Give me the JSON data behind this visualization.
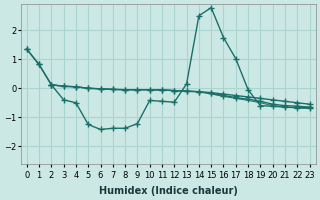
{
  "xlabel": "Humidex (Indice chaleur)",
  "bg_color": "#cce8e4",
  "grid_color": "#aad4ce",
  "line_color": "#1a7068",
  "xlim": [
    -0.5,
    23.5
  ],
  "ylim": [
    -2.6,
    2.9
  ],
  "yticks": [
    -2,
    -1,
    0,
    1,
    2
  ],
  "xtick_labels": [
    "0",
    "1",
    "2",
    "3",
    "4",
    "5",
    "6",
    "7",
    "8",
    "9",
    "10",
    "11",
    "12",
    "13",
    "14",
    "15",
    "16",
    "17",
    "18",
    "19",
    "20",
    "21",
    "22",
    "23"
  ],
  "line1_x": [
    0,
    1,
    2,
    3,
    4,
    5,
    6,
    7,
    8,
    9,
    10,
    11,
    12,
    13,
    14,
    15,
    16,
    17,
    18,
    19,
    20,
    21,
    22,
    23
  ],
  "line1_y": [
    1.35,
    0.82,
    0.12,
    0.07,
    0.05,
    0.0,
    -0.02,
    -0.04,
    -0.05,
    -0.05,
    -0.05,
    -0.06,
    -0.08,
    -0.1,
    -0.12,
    -0.15,
    -0.2,
    -0.25,
    -0.3,
    -0.35,
    -0.4,
    -0.45,
    -0.5,
    -0.55
  ],
  "line2_x": [
    0,
    1,
    2,
    3,
    4,
    5,
    6,
    7,
    8,
    9,
    10,
    11,
    12,
    13,
    14,
    15,
    16,
    17,
    18,
    19,
    20,
    21,
    22,
    23
  ],
  "line2_y": [
    1.35,
    0.82,
    0.12,
    -0.4,
    -0.5,
    -1.25,
    -1.42,
    -1.38,
    -1.38,
    -1.22,
    -0.42,
    -0.45,
    -0.48,
    0.15,
    2.5,
    2.78,
    1.75,
    1.02,
    -0.05,
    -0.6,
    -0.62,
    -0.65,
    -0.67,
    -0.67
  ],
  "line3_x": [
    2,
    3,
    4,
    5,
    6,
    7,
    8,
    9,
    10,
    11,
    12,
    13,
    14,
    15,
    16,
    17,
    18,
    19,
    20,
    21,
    22,
    23
  ],
  "line3_y": [
    0.12,
    0.07,
    0.05,
    0.0,
    -0.02,
    -0.04,
    -0.05,
    -0.05,
    -0.05,
    -0.06,
    -0.08,
    -0.1,
    -0.12,
    -0.18,
    -0.25,
    -0.32,
    -0.38,
    -0.45,
    -0.55,
    -0.6,
    -0.62,
    -0.65
  ],
  "line4_x": [
    2,
    3,
    4,
    5,
    6,
    7,
    8,
    9,
    10,
    11,
    12,
    13,
    14,
    15,
    16,
    17,
    18,
    19,
    20,
    21,
    22,
    23
  ],
  "line4_y": [
    0.12,
    0.07,
    0.05,
    0.0,
    -0.02,
    -0.04,
    -0.05,
    -0.05,
    -0.05,
    -0.06,
    -0.08,
    -0.1,
    -0.12,
    -0.2,
    -0.28,
    -0.35,
    -0.42,
    -0.5,
    -0.6,
    -0.65,
    -0.68,
    -0.7
  ]
}
